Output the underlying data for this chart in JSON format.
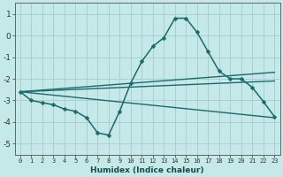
{
  "xlabel": "Humidex (Indice chaleur)",
  "background_color": "#c5e8e8",
  "grid_color": "#a8cbcb",
  "line_color": "#1a6b6b",
  "xlim": [
    -0.5,
    23.5
  ],
  "ylim": [
    -5.5,
    1.5
  ],
  "x_ticks": [
    0,
    1,
    2,
    3,
    4,
    5,
    6,
    7,
    8,
    9,
    10,
    11,
    12,
    13,
    14,
    15,
    16,
    17,
    18,
    19,
    20,
    21,
    22,
    23
  ],
  "yticks": [
    -5,
    -4,
    -3,
    -2,
    -1,
    0,
    1
  ],
  "series": [
    {
      "x": [
        0,
        1,
        2,
        3,
        4,
        5,
        6,
        7,
        8,
        9,
        10,
        11,
        12,
        13,
        14,
        15,
        16,
        17,
        18,
        19,
        20,
        21,
        22,
        23
      ],
      "y": [
        -2.6,
        -3.0,
        -3.1,
        -3.2,
        -3.4,
        -3.5,
        -3.8,
        -4.5,
        -4.6,
        -3.5,
        -2.2,
        -1.2,
        -0.5,
        -0.1,
        0.8,
        0.8,
        0.15,
        -0.75,
        -1.65,
        -2.0,
        -2.0,
        -2.4,
        -3.05,
        -3.75
      ],
      "has_marker": true,
      "markersize": 2.5,
      "linewidth": 1.1
    },
    {
      "x": [
        0,
        23
      ],
      "y": [
        -2.6,
        -1.7
      ],
      "has_marker": false,
      "linewidth": 1.0
    },
    {
      "x": [
        0,
        23
      ],
      "y": [
        -2.6,
        -2.1
      ],
      "has_marker": false,
      "linewidth": 1.0
    },
    {
      "x": [
        0,
        23
      ],
      "y": [
        -2.6,
        -3.8
      ],
      "has_marker": false,
      "linewidth": 1.0
    }
  ]
}
